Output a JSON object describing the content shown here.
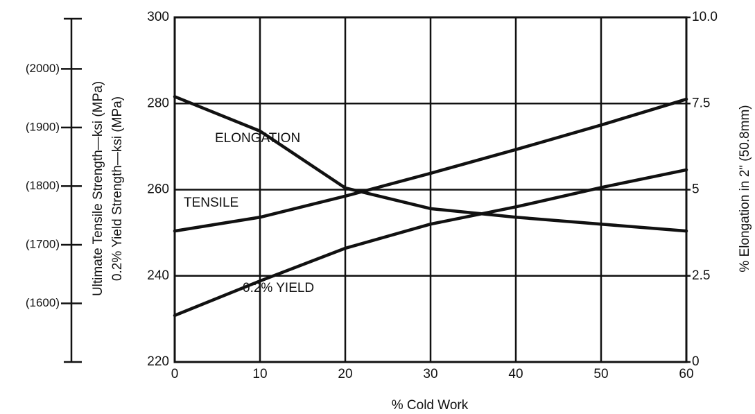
{
  "chart_data": {
    "type": "line",
    "xlabel": "% Cold Work",
    "ylabel_lines": [
      "Ultimate Tensile Strength—ksi (MPa)",
      "0.2% Yield Strength—ksi (MPa)"
    ],
    "y2label": "% Elongation in 2\" (50.8mm)",
    "x": [
      0,
      10,
      20,
      30,
      40,
      50,
      60
    ],
    "xlim": [
      0,
      60
    ],
    "xticks": [
      0,
      10,
      20,
      30,
      40,
      50,
      60
    ],
    "ylim": [
      220,
      300
    ],
    "yticks": [
      220,
      240,
      260,
      280,
      300
    ],
    "y2lim": [
      0,
      10
    ],
    "y2ticks": [
      0,
      2.5,
      5,
      7.5,
      {
        "value": 10,
        "label": "10.0"
      }
    ],
    "y3lim": [
      1500,
      2088
    ],
    "y3ticks": [
      {
        "value": 1600,
        "label": "(1600)"
      },
      {
        "value": 1700,
        "label": "(1700)"
      },
      {
        "value": 1800,
        "label": "(1800)"
      },
      {
        "value": 1900,
        "label": "(1900)"
      },
      {
        "value": 2000,
        "label": "(2000)"
      }
    ],
    "grid": true,
    "series": [
      {
        "name": "ELONGATION",
        "color": "#111111",
        "axis": "y2",
        "values": [
          7.7,
          6.7,
          5.05,
          4.45,
          4.2,
          4.0,
          3.8
        ]
      },
      {
        "name": "TENSILE",
        "color": "#111111",
        "values": [
          250.4,
          253.6,
          258.5,
          263.8,
          269.3,
          275,
          281
        ]
      },
      {
        "name": "0.2% YIELD",
        "color": "#111111",
        "values": [
          230.8,
          238.8,
          246.4,
          252,
          256,
          260.5,
          264.6
        ]
      }
    ]
  }
}
